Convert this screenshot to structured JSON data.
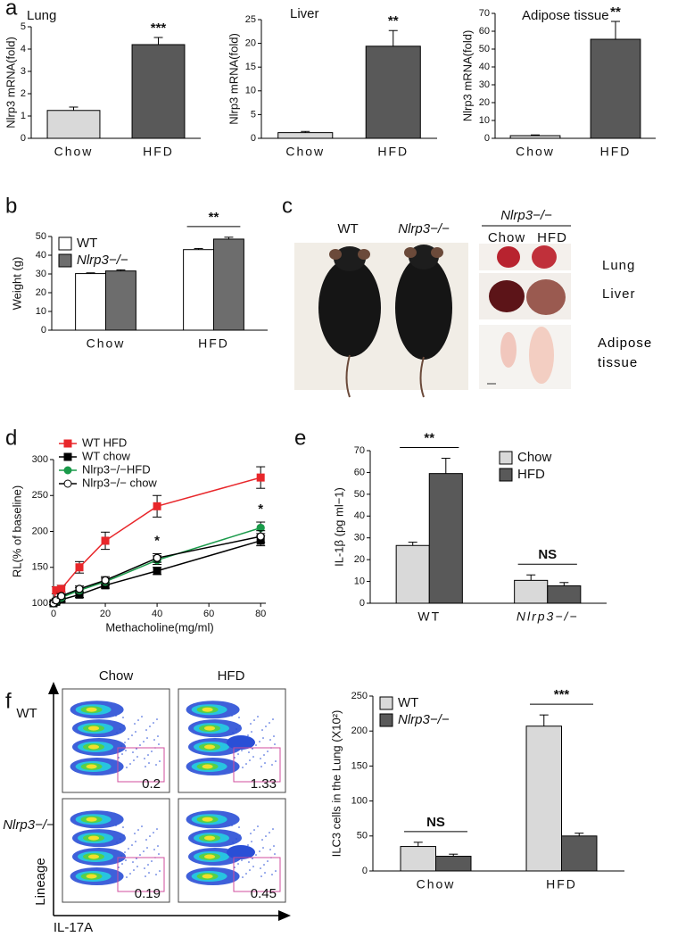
{
  "panel_labels": [
    "a",
    "b",
    "c",
    "d",
    "e",
    "f"
  ],
  "chart_data": [
    {
      "type": "bar",
      "title": "Lung",
      "ylabel": "Nlrp3 mRNA(fold)",
      "categories": [
        "Chow",
        "HFD"
      ],
      "values": [
        1.25,
        4.2
      ],
      "errors": [
        0.15,
        0.32
      ],
      "colors": [
        "#d9d9d9",
        "#595959"
      ],
      "ylim": [
        0,
        5
      ],
      "yticks": [
        0,
        1,
        2,
        3,
        4,
        5
      ],
      "annotations": [
        {
          "text": "***",
          "x": "HFD"
        }
      ]
    },
    {
      "type": "bar",
      "title": "Liver",
      "ylabel": "Nlrp3 mRNA(fold)",
      "categories": [
        "Chow",
        "HFD"
      ],
      "values": [
        1.2,
        19.4
      ],
      "errors": [
        0.25,
        3.3
      ],
      "colors": [
        "#d9d9d9",
        "#595959"
      ],
      "ylim": [
        0,
        25
      ],
      "yticks": [
        0,
        5,
        10,
        15,
        20,
        25
      ],
      "annotations": [
        {
          "text": "**",
          "x": "HFD"
        }
      ]
    },
    {
      "type": "bar",
      "title": "Adipose tissue",
      "ylabel": "Nlrp3 mRNA(fold)",
      "categories": [
        "Chow",
        "HFD"
      ],
      "values": [
        1.5,
        55.5
      ],
      "errors": [
        0.4,
        10
      ],
      "colors": [
        "#d9d9d9",
        "#595959"
      ],
      "ylim": [
        0,
        70
      ],
      "yticks": [
        0,
        10,
        20,
        30,
        40,
        50,
        60,
        70
      ],
      "annotations": [
        {
          "text": "**",
          "x": "HFD"
        }
      ]
    },
    {
      "type": "bar",
      "ylabel": "Weight (g)",
      "categories": [
        "Chow",
        "HFD"
      ],
      "series": [
        {
          "name": "WT",
          "color": "#ffffff",
          "values": [
            30.2,
            43
          ],
          "errors": [
            0.4,
            0.6
          ]
        },
        {
          "name": "Nlrp3−/−",
          "color": "#6d6d6d",
          "values": [
            31.6,
            48.6
          ],
          "errors": [
            0.6,
            1.0
          ]
        }
      ],
      "ylim": [
        0,
        50
      ],
      "yticks": [
        0,
        10,
        20,
        30,
        40,
        50
      ],
      "legend": "upper left",
      "annotations": [
        {
          "text": "**",
          "x": "HFD"
        }
      ]
    },
    {
      "type": "line",
      "xlabel": "Methacholine(mg/ml)",
      "ylabel": "RL(% of baseline)",
      "x": [
        0,
        1,
        3,
        10,
        20,
        40,
        80
      ],
      "series": [
        {
          "name": "WT HFD",
          "color": "#e8262a",
          "marker": "square",
          "marker_fill": "#e8262a",
          "values": [
            100,
            118,
            120,
            150,
            187,
            235,
            275
          ],
          "errors": [
            2,
            5,
            5,
            8,
            12,
            15,
            15
          ]
        },
        {
          "name": "WT chow",
          "color": "#000000",
          "marker": "square",
          "marker_fill": "#000000",
          "values": [
            100,
            102,
            105,
            112,
            125,
            145,
            187
          ],
          "errors": [
            2,
            3,
            3,
            4,
            4,
            5,
            7
          ]
        },
        {
          "name": "Nlrp3−/−HFD",
          "color": "#1a9a4a",
          "marker": "circle",
          "marker_fill": "#1a9a4a",
          "values": [
            100,
            103,
            108,
            118,
            130,
            160,
            205
          ],
          "errors": [
            2,
            3,
            3,
            4,
            5,
            6,
            8
          ]
        },
        {
          "name": "Nlrp3−/− chow",
          "color": "#000000",
          "marker": "circle",
          "marker_fill": "#ffffff",
          "values": [
            100,
            104,
            110,
            120,
            132,
            163,
            193
          ],
          "errors": [
            2,
            3,
            3,
            4,
            5,
            6,
            8
          ]
        }
      ],
      "xlim": [
        0,
        82
      ],
      "xticks": [
        0,
        20,
        40,
        60,
        80
      ],
      "ylim": [
        100,
        300
      ],
      "yticks": [
        100,
        150,
        200,
        250,
        300
      ],
      "legend": "upper left",
      "annotations": [
        {
          "text": "*",
          "x": 40
        },
        {
          "text": "*",
          "x": 80
        }
      ]
    },
    {
      "type": "bar",
      "ylabel": "IL-1β (pg ml−1)",
      "categories": [
        "WT",
        "Nlrp3−/−"
      ],
      "series": [
        {
          "name": "Chow",
          "color": "#d9d9d9",
          "values": [
            26.5,
            10.5
          ],
          "errors": [
            1.5,
            2.5
          ]
        },
        {
          "name": "HFD",
          "color": "#595959",
          "values": [
            59.5,
            8
          ],
          "errors": [
            7,
            1.5
          ]
        }
      ],
      "ylim": [
        0,
        70
      ],
      "yticks": [
        0,
        10,
        20,
        30,
        40,
        50,
        60,
        70
      ],
      "legend": "upper right",
      "annotations": [
        {
          "text": "**",
          "x": "WT"
        },
        {
          "text": "NS",
          "x": "Nlrp3−/−"
        }
      ]
    },
    {
      "type": "bar",
      "ylabel": "ILC3 cells in the Lung (X10²)",
      "categories": [
        "Chow",
        "HFD"
      ],
      "series": [
        {
          "name": "WT",
          "color": "#d9d9d9",
          "values": [
            35,
            207
          ],
          "errors": [
            6,
            16
          ]
        },
        {
          "name": "Nlrp3−/−",
          "color": "#595959",
          "values": [
            21,
            50
          ],
          "errors": [
            3,
            4
          ]
        }
      ],
      "ylim": [
        0,
        250
      ],
      "yticks": [
        0,
        50,
        100,
        150,
        200,
        250
      ],
      "legend": "upper left",
      "annotations": [
        {
          "text": "NS",
          "x": "Chow"
        },
        {
          "text": "***",
          "x": "HFD"
        }
      ]
    }
  ],
  "photo_panel": {
    "mice": [
      "WT",
      "Nlrp3−/−"
    ],
    "organ_header": "Nlrp3−/−",
    "organ_columns": [
      "Chow",
      "HFD"
    ],
    "organs": [
      "Lung",
      "Liver",
      "Adipose tissue"
    ]
  },
  "flow_panel": {
    "columns": [
      "Chow",
      "HFD"
    ],
    "rows": [
      "WT",
      "Nlrp3−/−"
    ],
    "gates": [
      [
        0.2,
        1.33
      ],
      [
        0.19,
        0.45
      ]
    ],
    "yaxis": "Lineage",
    "xaxis": "IL-17A"
  }
}
